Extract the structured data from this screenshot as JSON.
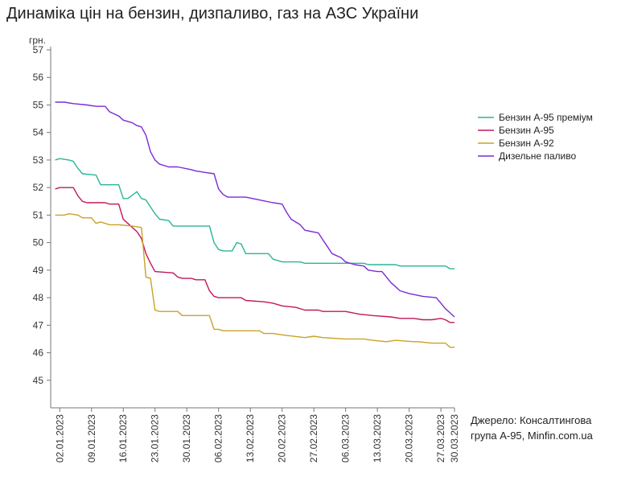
{
  "title": "Динаміка цін на бензин, дизпаливо, газ на АЗС України",
  "source_lines": [
    "Джерело: Консалтингова",
    "група А-95, Minfin.com.ua"
  ],
  "colors": {
    "premium": "#2bb596",
    "a95": "#c2185b",
    "a92": "#c9a227",
    "diesel": "#7b2ad6",
    "axis": "#777777",
    "grid": "#e6e6e6"
  },
  "chart_data": {
    "type": "line",
    "title": "Динаміка цін на бензин, дизпаливо, газ на АЗС України",
    "ylabel": "грн.",
    "xlabel": "",
    "ylim": [
      44,
      57
    ],
    "yticks": [
      45,
      46,
      47,
      48,
      49,
      50,
      51,
      52,
      53,
      54,
      55,
      56,
      57
    ],
    "x_range": [
      "2022-12-31",
      "2023-03-30"
    ],
    "x_ticks": [
      "02.01.2023",
      "09.01.2023",
      "16.01.2023",
      "23.01.2023",
      "30.01.2023",
      "06.02.2023",
      "13.02.2023",
      "20.02.2023",
      "27.02.2023",
      "06.03.2023",
      "13.03.2023",
      "20.03.2023",
      "27.03.2023",
      "30.03.2023"
    ],
    "legend_position": "right",
    "grid": false,
    "series": [
      {
        "name": "Бензин А-95 преміум",
        "color": "#2bb596",
        "points": [
          [
            "2023-01-01",
            53.0
          ],
          [
            "2023-01-02",
            53.05
          ],
          [
            "2023-01-04",
            53.0
          ],
          [
            "2023-01-05",
            52.95
          ],
          [
            "2023-01-06",
            52.7
          ],
          [
            "2023-01-07",
            52.5
          ],
          [
            "2023-01-10",
            52.45
          ],
          [
            "2023-01-11",
            52.1
          ],
          [
            "2023-01-15",
            52.1
          ],
          [
            "2023-01-16",
            51.6
          ],
          [
            "2023-01-17",
            51.6
          ],
          [
            "2023-01-19",
            51.85
          ],
          [
            "2023-01-20",
            51.6
          ],
          [
            "2023-01-21",
            51.55
          ],
          [
            "2023-01-23",
            51.05
          ],
          [
            "2023-01-24",
            50.85
          ],
          [
            "2023-01-26",
            50.8
          ],
          [
            "2023-01-27",
            50.6
          ],
          [
            "2023-02-04",
            50.6
          ],
          [
            "2023-02-05",
            50.0
          ],
          [
            "2023-02-06",
            49.75
          ],
          [
            "2023-02-07",
            49.7
          ],
          [
            "2023-02-09",
            49.7
          ],
          [
            "2023-02-10",
            50.0
          ],
          [
            "2023-02-11",
            49.95
          ],
          [
            "2023-02-12",
            49.6
          ],
          [
            "2023-02-13",
            49.6
          ],
          [
            "2023-02-17",
            49.6
          ],
          [
            "2023-02-18",
            49.4
          ],
          [
            "2023-02-20",
            49.3
          ],
          [
            "2023-02-24",
            49.3
          ],
          [
            "2023-02-25",
            49.25
          ],
          [
            "2023-03-10",
            49.25
          ],
          [
            "2023-03-11",
            49.2
          ],
          [
            "2023-03-17",
            49.2
          ],
          [
            "2023-03-18",
            49.15
          ],
          [
            "2023-03-27",
            49.15
          ],
          [
            "2023-03-28",
            49.15
          ],
          [
            "2023-03-29",
            49.05
          ],
          [
            "2023-03-30",
            49.05
          ]
        ]
      },
      {
        "name": "Бензин А-95",
        "color": "#c2185b",
        "points": [
          [
            "2023-01-01",
            51.95
          ],
          [
            "2023-01-02",
            52.0
          ],
          [
            "2023-01-05",
            52.0
          ],
          [
            "2023-01-06",
            51.7
          ],
          [
            "2023-01-07",
            51.5
          ],
          [
            "2023-01-08",
            51.45
          ],
          [
            "2023-01-12",
            51.45
          ],
          [
            "2023-01-13",
            51.4
          ],
          [
            "2023-01-15",
            51.4
          ],
          [
            "2023-01-16",
            50.85
          ],
          [
            "2023-01-17",
            50.7
          ],
          [
            "2023-01-18",
            50.55
          ],
          [
            "2023-01-19",
            50.4
          ],
          [
            "2023-01-20",
            50.15
          ],
          [
            "2023-01-21",
            49.6
          ],
          [
            "2023-01-22",
            49.25
          ],
          [
            "2023-01-23",
            48.95
          ],
          [
            "2023-01-27",
            48.9
          ],
          [
            "2023-01-28",
            48.75
          ],
          [
            "2023-01-29",
            48.7
          ],
          [
            "2023-01-31",
            48.7
          ],
          [
            "2023-02-01",
            48.65
          ],
          [
            "2023-02-03",
            48.65
          ],
          [
            "2023-02-04",
            48.25
          ],
          [
            "2023-02-05",
            48.05
          ],
          [
            "2023-02-06",
            48.0
          ],
          [
            "2023-02-11",
            48.0
          ],
          [
            "2023-02-12",
            47.9
          ],
          [
            "2023-02-16",
            47.85
          ],
          [
            "2023-02-18",
            47.8
          ],
          [
            "2023-02-20",
            47.7
          ],
          [
            "2023-02-23",
            47.65
          ],
          [
            "2023-02-25",
            47.55
          ],
          [
            "2023-02-28",
            47.55
          ],
          [
            "2023-03-01",
            47.5
          ],
          [
            "2023-03-06",
            47.5
          ],
          [
            "2023-03-09",
            47.4
          ],
          [
            "2023-03-12",
            47.35
          ],
          [
            "2023-03-16",
            47.3
          ],
          [
            "2023-03-18",
            47.25
          ],
          [
            "2023-03-21",
            47.25
          ],
          [
            "2023-03-23",
            47.2
          ],
          [
            "2023-03-25",
            47.2
          ],
          [
            "2023-03-27",
            47.25
          ],
          [
            "2023-03-28",
            47.2
          ],
          [
            "2023-03-29",
            47.1
          ],
          [
            "2023-03-30",
            47.1
          ]
        ]
      },
      {
        "name": "Бензин А-92",
        "color": "#c9a227",
        "points": [
          [
            "2023-01-01",
            51.0
          ],
          [
            "2023-01-03",
            51.0
          ],
          [
            "2023-01-04",
            51.05
          ],
          [
            "2023-01-06",
            51.0
          ],
          [
            "2023-01-07",
            50.9
          ],
          [
            "2023-01-09",
            50.9
          ],
          [
            "2023-01-10",
            50.7
          ],
          [
            "2023-01-11",
            50.75
          ],
          [
            "2023-01-13",
            50.65
          ],
          [
            "2023-01-15",
            50.65
          ],
          [
            "2023-01-18",
            50.6
          ],
          [
            "2023-01-20",
            50.55
          ],
          [
            "2023-01-21",
            48.75
          ],
          [
            "2023-01-22",
            48.7
          ],
          [
            "2023-01-23",
            47.55
          ],
          [
            "2023-01-24",
            47.5
          ],
          [
            "2023-01-28",
            47.5
          ],
          [
            "2023-01-29",
            47.35
          ],
          [
            "2023-02-04",
            47.35
          ],
          [
            "2023-02-05",
            46.85
          ],
          [
            "2023-02-06",
            46.85
          ],
          [
            "2023-02-07",
            46.8
          ],
          [
            "2023-02-15",
            46.8
          ],
          [
            "2023-02-16",
            46.7
          ],
          [
            "2023-02-18",
            46.7
          ],
          [
            "2023-02-20",
            46.65
          ],
          [
            "2023-02-25",
            46.55
          ],
          [
            "2023-02-27",
            46.6
          ],
          [
            "2023-03-01",
            46.55
          ],
          [
            "2023-03-06",
            46.5
          ],
          [
            "2023-03-10",
            46.5
          ],
          [
            "2023-03-12",
            46.45
          ],
          [
            "2023-03-15",
            46.4
          ],
          [
            "2023-03-17",
            46.45
          ],
          [
            "2023-03-21",
            46.4
          ],
          [
            "2023-03-22",
            46.4
          ],
          [
            "2023-03-25",
            46.35
          ],
          [
            "2023-03-28",
            46.35
          ],
          [
            "2023-03-29",
            46.2
          ],
          [
            "2023-03-30",
            46.2
          ]
        ]
      },
      {
        "name": "Дизельне паливо",
        "color": "#7b2ad6",
        "points": [
          [
            "2023-01-01",
            55.1
          ],
          [
            "2023-01-03",
            55.1
          ],
          [
            "2023-01-05",
            55.05
          ],
          [
            "2023-01-08",
            55.0
          ],
          [
            "2023-01-10",
            54.95
          ],
          [
            "2023-01-12",
            54.95
          ],
          [
            "2023-01-13",
            54.75
          ],
          [
            "2023-01-15",
            54.6
          ],
          [
            "2023-01-16",
            54.45
          ],
          [
            "2023-01-18",
            54.35
          ],
          [
            "2023-01-19",
            54.25
          ],
          [
            "2023-01-20",
            54.2
          ],
          [
            "2023-01-21",
            53.9
          ],
          [
            "2023-01-22",
            53.3
          ],
          [
            "2023-01-23",
            53.0
          ],
          [
            "2023-01-24",
            52.85
          ],
          [
            "2023-01-26",
            52.75
          ],
          [
            "2023-01-28",
            52.75
          ],
          [
            "2023-01-31",
            52.65
          ],
          [
            "2023-02-01",
            52.6
          ],
          [
            "2023-02-03",
            52.55
          ],
          [
            "2023-02-05",
            52.5
          ],
          [
            "2023-02-06",
            51.95
          ],
          [
            "2023-02-07",
            51.75
          ],
          [
            "2023-02-08",
            51.65
          ],
          [
            "2023-02-12",
            51.65
          ],
          [
            "2023-02-15",
            51.55
          ],
          [
            "2023-02-18",
            51.45
          ],
          [
            "2023-02-20",
            51.4
          ],
          [
            "2023-02-21",
            51.1
          ],
          [
            "2023-02-22",
            50.85
          ],
          [
            "2023-02-24",
            50.65
          ],
          [
            "2023-02-25",
            50.45
          ],
          [
            "2023-02-28",
            50.35
          ],
          [
            "2023-03-01",
            50.1
          ],
          [
            "2023-03-02",
            49.85
          ],
          [
            "2023-03-03",
            49.6
          ],
          [
            "2023-03-05",
            49.45
          ],
          [
            "2023-03-06",
            49.3
          ],
          [
            "2023-03-08",
            49.2
          ],
          [
            "2023-03-10",
            49.15
          ],
          [
            "2023-03-11",
            49.0
          ],
          [
            "2023-03-13",
            48.95
          ],
          [
            "2023-03-14",
            48.95
          ],
          [
            "2023-03-16",
            48.55
          ],
          [
            "2023-03-18",
            48.25
          ],
          [
            "2023-03-20",
            48.15
          ],
          [
            "2023-03-23",
            48.05
          ],
          [
            "2023-03-26",
            48.0
          ],
          [
            "2023-03-28",
            47.6
          ],
          [
            "2023-03-29",
            47.45
          ],
          [
            "2023-03-30",
            47.3
          ]
        ]
      }
    ]
  }
}
